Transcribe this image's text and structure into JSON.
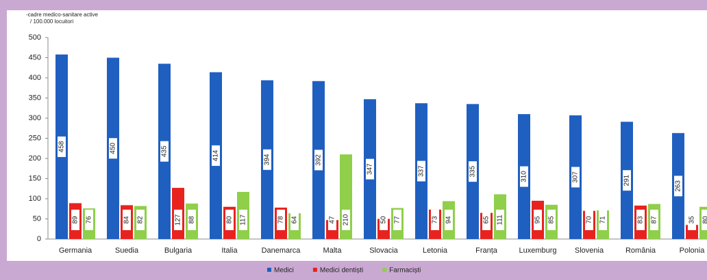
{
  "chart_data": {
    "type": "bar",
    "y_label_lines": [
      "-cadre medico-sanitare active",
      "/ 100.000 locuitori"
    ],
    "categories": [
      "Germania",
      "Suedia",
      "Bulgaria",
      "Italia",
      "Danemarca",
      "Malta",
      "Slovacia",
      "Letonia",
      "Franța",
      "Luxemburg",
      "Slovenia",
      "România",
      "Polonia"
    ],
    "series": [
      {
        "name": "Medici",
        "color": "#1f5fc0",
        "values": [
          458,
          450,
          435,
          414,
          394,
          392,
          347,
          337,
          335,
          310,
          307,
          291,
          263
        ]
      },
      {
        "name": "Medici dentiști",
        "color": "#e8231f",
        "values": [
          89,
          84,
          127,
          80,
          78,
          47,
          50,
          73,
          65,
          95,
          70,
          83,
          35
        ]
      },
      {
        "name": "Farmaciști",
        "color": "#8fcf4a",
        "values": [
          76,
          82,
          88,
          117,
          64,
          210,
          77,
          94,
          111,
          85,
          71,
          87,
          80
        ]
      }
    ],
    "ylim": [
      0,
      500
    ],
    "yticks": [
      0,
      50,
      100,
      150,
      200,
      250,
      300,
      350,
      400,
      450,
      500
    ],
    "grid": false,
    "legend": "bottom"
  }
}
